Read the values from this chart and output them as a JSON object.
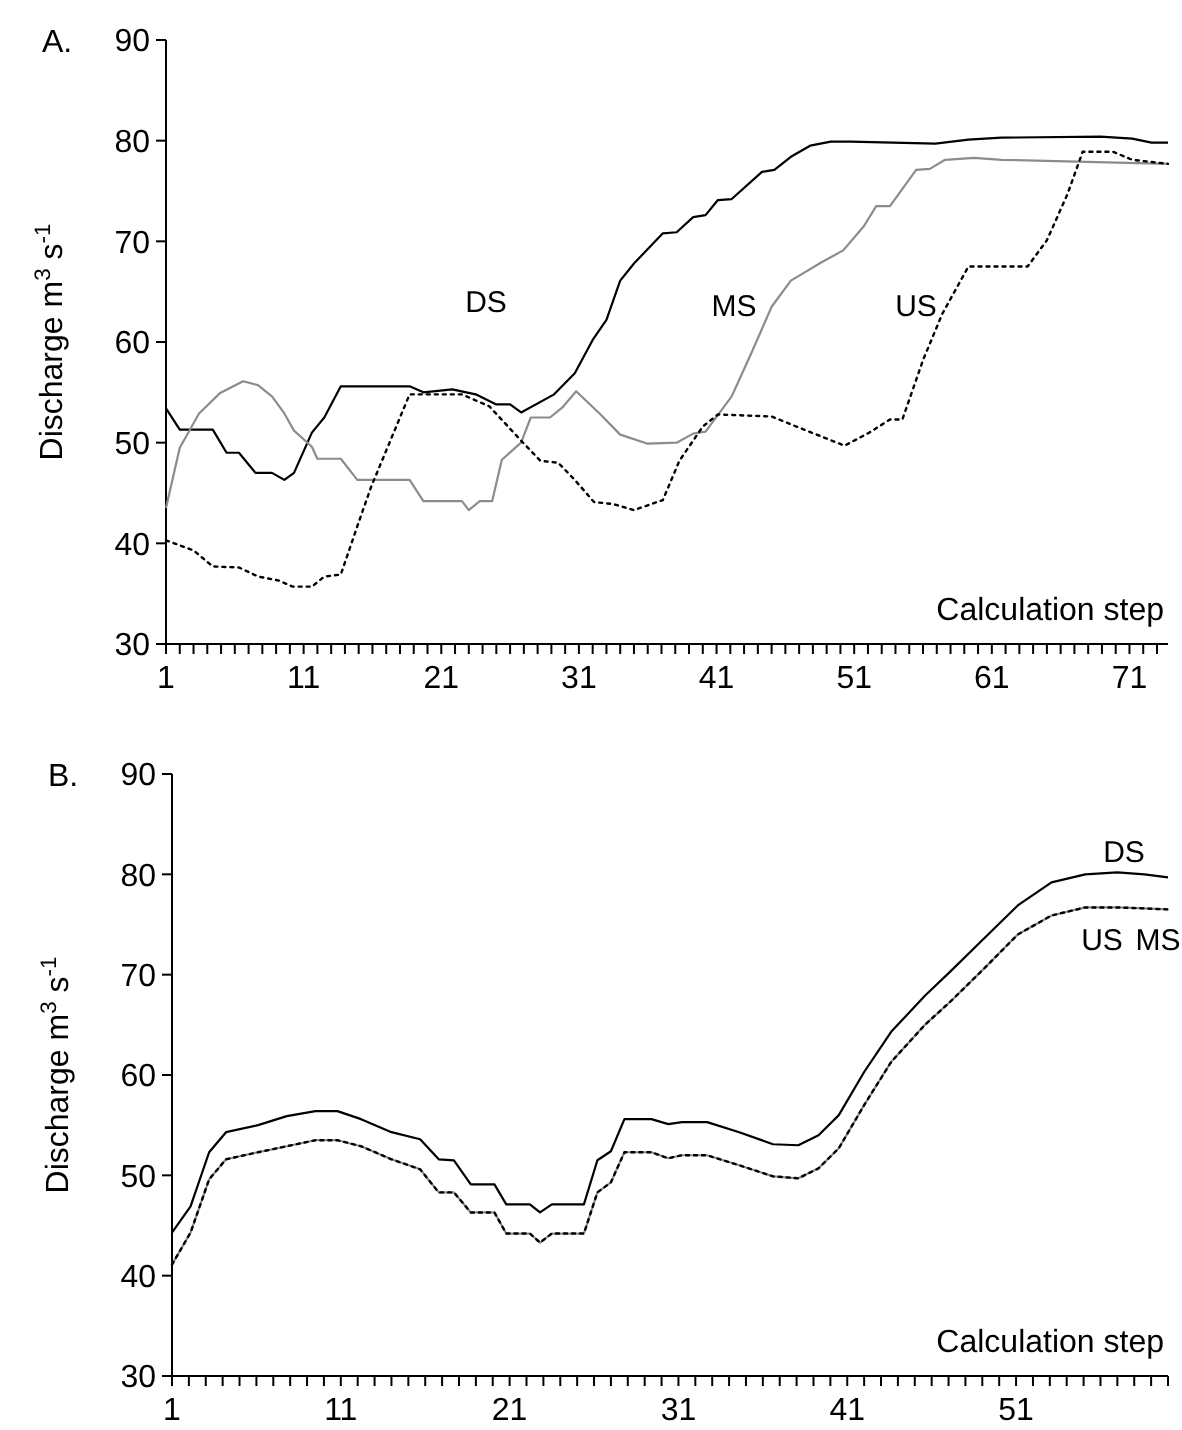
{
  "chart_data": [
    {
      "type": "line",
      "title": "A.",
      "xlabel": "Calculation step",
      "ylabel": "Discharge m$^{3}$ s$^{-1}$",
      "xlim": [
        1,
        73.8
      ],
      "ylim": [
        30,
        90
      ],
      "yticks": [
        30,
        40,
        50,
        60,
        70,
        80,
        90
      ],
      "xticks": [
        1,
        {
          "value": 2,
          "label": null
        },
        {
          "value": 3,
          "label": null
        },
        {
          "value": 4,
          "label": null
        },
        {
          "value": 5,
          "label": null
        },
        {
          "value": 6,
          "label": null
        },
        {
          "value": 7,
          "label": null
        },
        {
          "value": 8,
          "label": null
        },
        {
          "value": 9,
          "label": null
        },
        {
          "value": 10,
          "label": null
        },
        11,
        {
          "value": 12,
          "label": null
        },
        {
          "value": 13,
          "label": null
        },
        {
          "value": 14,
          "label": null
        },
        {
          "value": 15,
          "label": null
        },
        {
          "value": 16,
          "label": null
        },
        {
          "value": 17,
          "label": null
        },
        {
          "value": 18,
          "label": null
        },
        {
          "value": 19,
          "label": null
        },
        {
          "value": 20,
          "label": null
        },
        21,
        {
          "value": 22,
          "label": null
        },
        {
          "value": 23,
          "label": null
        },
        {
          "value": 24,
          "label": null
        },
        {
          "value": 25,
          "label": null
        },
        {
          "value": 26,
          "label": null
        },
        {
          "value": 27,
          "label": null
        },
        {
          "value": 28,
          "label": null
        },
        {
          "value": 29,
          "label": null
        },
        {
          "value": 30,
          "label": null
        },
        31,
        {
          "value": 32,
          "label": null
        },
        {
          "value": 33,
          "label": null
        },
        {
          "value": 34,
          "label": null
        },
        {
          "value": 35,
          "label": null
        },
        {
          "value": 36,
          "label": null
        },
        {
          "value": 37,
          "label": null
        },
        {
          "value": 38,
          "label": null
        },
        {
          "value": 39,
          "label": null
        },
        {
          "value": 40,
          "label": null
        },
        41,
        {
          "value": 42,
          "label": null
        },
        {
          "value": 43,
          "label": null
        },
        {
          "value": 44,
          "label": null
        },
        {
          "value": 45,
          "label": null
        },
        {
          "value": 46,
          "label": null
        },
        {
          "value": 47,
          "label": null
        },
        {
          "value": 48,
          "label": null
        },
        {
          "value": 49,
          "label": null
        },
        {
          "value": 50,
          "label": null
        },
        51,
        {
          "value": 52,
          "label": null
        },
        {
          "value": 53,
          "label": null
        },
        {
          "value": 54,
          "label": null
        },
        {
          "value": 55,
          "label": null
        },
        {
          "value": 56,
          "label": null
        },
        {
          "value": 57,
          "label": null
        },
        {
          "value": 58,
          "label": null
        },
        {
          "value": 59,
          "label": null
        },
        {
          "value": 60,
          "label": null
        },
        61,
        {
          "value": 62,
          "label": null
        },
        {
          "value": 63,
          "label": null
        },
        {
          "value": 64,
          "label": null
        },
        {
          "value": 65,
          "label": null
        },
        {
          "value": 66,
          "label": null
        },
        {
          "value": 67,
          "label": null
        },
        {
          "value": 68,
          "label": null
        },
        {
          "value": 69,
          "label": null
        },
        {
          "value": 70,
          "label": null
        },
        71,
        {
          "value": 72,
          "label": null
        },
        {
          "value": 73,
          "label": null
        }
      ],
      "series": [
        {
          "name": "DS",
          "color": "#000000",
          "line_style": "solid",
          "x": [
            1,
            2,
            4.4,
            5.4,
            6.3,
            7.5,
            8.7,
            9.6,
            10.3,
            11.6,
            12.5,
            13.7,
            18.7,
            19.7,
            21.8,
            23.5,
            25,
            26,
            26.8,
            29.2,
            30.7,
            32,
            33,
            34,
            35,
            37.1,
            38.1,
            39.3,
            40.2,
            41.1,
            42.1,
            44.3,
            45.2,
            46.4,
            47.8,
            49.3,
            50.7,
            56.9,
            59.3,
            61.7,
            68.9,
            71.2,
            72.6,
            73.8
          ],
          "values": [
            53.4,
            51.3,
            51.3,
            49,
            49,
            47,
            47,
            46.3,
            47,
            51,
            52.5,
            55.6,
            55.6,
            55,
            55.3,
            54.8,
            53.8,
            53.8,
            53,
            54.8,
            56.9,
            60.2,
            62.2,
            66.1,
            67.8,
            70.8,
            70.9,
            72.4,
            72.6,
            74.1,
            74.2,
            76.9,
            77.1,
            78.4,
            79.5,
            79.9,
            79.9,
            79.7,
            80.1,
            80.3,
            80.4,
            80.2,
            79.8,
            79.8
          ]
        },
        {
          "name": "MS",
          "color": "#8c8c8c",
          "line_style": "solid",
          "x": [
            1,
            2,
            3.4,
            4.9,
            6.6,
            7.7,
            8.7,
            9.6,
            10.3,
            11.6,
            12,
            13.7,
            14.9,
            18.7,
            19.7,
            22.5,
            23,
            23.8,
            24.7,
            25.4,
            26.8,
            27.5,
            28.9,
            29.8,
            30.8,
            32.5,
            34,
            36,
            38.1,
            39.3,
            40.2,
            42.1,
            43.5,
            45,
            46.4,
            48.6,
            50.2,
            51.7,
            52.6,
            53.6,
            55.5,
            56.5,
            57.6,
            59.7,
            61.7,
            73.8
          ],
          "values": [
            43.5,
            49.5,
            52.9,
            54.9,
            56.1,
            55.7,
            54.6,
            52.9,
            51.2,
            49.6,
            48.4,
            48.4,
            46.3,
            46.3,
            44.2,
            44.2,
            43.3,
            44.2,
            44.2,
            48.3,
            50,
            52.5,
            52.5,
            53.5,
            55.1,
            52.9,
            50.8,
            49.9,
            50,
            50.9,
            51.1,
            54.6,
            58.8,
            63.5,
            66.1,
            67.9,
            69.1,
            71.5,
            73.5,
            73.5,
            77.1,
            77.2,
            78.1,
            78.3,
            78.1,
            77.7
          ]
        },
        {
          "name": "US",
          "color": "#000000",
          "line_style": "dotted",
          "x": [
            1,
            3,
            4.4,
            6.3,
            7.7,
            9.2,
            10.2,
            11.6,
            12.5,
            13.7,
            14.9,
            15.9,
            17.3,
            18.7,
            22.5,
            24.5,
            26.8,
            28.2,
            29.5,
            30.7,
            32.1,
            33.5,
            35,
            37.1,
            38.3,
            40,
            41.1,
            45,
            46.8,
            50.3,
            52.1,
            53.6,
            54.5,
            56,
            57.4,
            59.3,
            63.6,
            65,
            66.5,
            67.6,
            69.8,
            71.2,
            73.8
          ],
          "values": [
            40.3,
            39.3,
            37.7,
            37.6,
            36.7,
            36.3,
            35.7,
            35.7,
            36.7,
            36.9,
            41.7,
            45.6,
            50.2,
            54.8,
            54.8,
            53.6,
            50.2,
            48.2,
            48,
            46.3,
            44.1,
            43.9,
            43.3,
            44.3,
            48.2,
            51.6,
            52.8,
            52.6,
            51.6,
            49.7,
            51,
            52.3,
            52.3,
            58.2,
            62.8,
            67.5,
            67.5,
            70.1,
            74.7,
            78.9,
            78.9,
            78.1,
            77.7
          ]
        }
      ]
    },
    {
      "type": "line",
      "title": "B.",
      "xlabel": "Calculation step",
      "ylabel": "Discharge m$^{3}$ s$^{-1}$",
      "xlim": [
        1,
        60
      ],
      "ylim": [
        30,
        90
      ],
      "yticks": [
        30,
        40,
        50,
        60,
        70,
        80,
        90
      ],
      "xticks": [
        1,
        {
          "value": 2,
          "label": null
        },
        {
          "value": 3,
          "label": null
        },
        {
          "value": 4,
          "label": null
        },
        {
          "value": 5,
          "label": null
        },
        {
          "value": 6,
          "label": null
        },
        {
          "value": 7,
          "label": null
        },
        {
          "value": 8,
          "label": null
        },
        {
          "value": 9,
          "label": null
        },
        {
          "value": 10,
          "label": null
        },
        11,
        {
          "value": 12,
          "label": null
        },
        {
          "value": 13,
          "label": null
        },
        {
          "value": 14,
          "label": null
        },
        {
          "value": 15,
          "label": null
        },
        {
          "value": 16,
          "label": null
        },
        {
          "value": 17,
          "label": null
        },
        {
          "value": 18,
          "label": null
        },
        {
          "value": 19,
          "label": null
        },
        {
          "value": 20,
          "label": null
        },
        21,
        {
          "value": 22,
          "label": null
        },
        {
          "value": 23,
          "label": null
        },
        {
          "value": 24,
          "label": null
        },
        {
          "value": 25,
          "label": null
        },
        {
          "value": 26,
          "label": null
        },
        {
          "value": 27,
          "label": null
        },
        {
          "value": 28,
          "label": null
        },
        {
          "value": 29,
          "label": null
        },
        {
          "value": 30,
          "label": null
        },
        31,
        {
          "value": 32,
          "label": null
        },
        {
          "value": 33,
          "label": null
        },
        {
          "value": 34,
          "label": null
        },
        {
          "value": 35,
          "label": null
        },
        {
          "value": 36,
          "label": null
        },
        {
          "value": 37,
          "label": null
        },
        {
          "value": 38,
          "label": null
        },
        {
          "value": 39,
          "label": null
        },
        {
          "value": 40,
          "label": null
        },
        41,
        {
          "value": 42,
          "label": null
        },
        {
          "value": 43,
          "label": null
        },
        {
          "value": 44,
          "label": null
        },
        {
          "value": 45,
          "label": null
        },
        {
          "value": 46,
          "label": null
        },
        {
          "value": 47,
          "label": null
        },
        {
          "value": 48,
          "label": null
        },
        {
          "value": 49,
          "label": null
        },
        {
          "value": 50,
          "label": null
        },
        51,
        {
          "value": 52,
          "label": null
        },
        {
          "value": 53,
          "label": null
        },
        {
          "value": 54,
          "label": null
        },
        {
          "value": 55,
          "label": null
        },
        {
          "value": 56,
          "label": null
        },
        {
          "value": 57,
          "label": null
        },
        {
          "value": 58,
          "label": null
        },
        {
          "value": 59,
          "label": null
        },
        {
          "value": 60,
          "label": null
        }
      ],
      "series": [
        {
          "name": "DS",
          "color": "#000000",
          "line_style": "solid",
          "x": [
            1,
            2.1,
            3.2,
            4.2,
            6.1,
            7.8,
            9.5,
            10.8,
            12.2,
            14,
            15.7,
            16.8,
            17.7,
            18.7,
            20.1,
            20.8,
            22.2,
            22.8,
            23.5,
            25.4,
            26.2,
            27,
            27.8,
            29.4,
            30.4,
            31.2,
            32.7,
            34.6,
            36.6,
            38.1,
            39.3,
            40.5,
            42,
            43.6,
            45.6,
            47.1,
            49.1,
            51.1,
            53.1,
            55.1,
            57,
            58.6,
            60
          ],
          "values": [
            44.3,
            46.9,
            52.3,
            54.3,
            55,
            55.9,
            56.4,
            56.4,
            55.6,
            54.3,
            53.6,
            51.6,
            51.5,
            49.1,
            49.1,
            47.1,
            47.1,
            46.3,
            47.1,
            47.1,
            51.5,
            52.4,
            55.6,
            55.6,
            55.1,
            55.3,
            55.3,
            54.3,
            53.1,
            53,
            54,
            56,
            60.3,
            64.3,
            67.9,
            70.3,
            73.6,
            76.9,
            79.2,
            80,
            80.2,
            80,
            79.7
          ]
        },
        {
          "name": "MS",
          "color": "#8c8c8c",
          "line_style": "solid",
          "x": [
            1,
            2.1,
            3.2,
            4.2,
            6.1,
            7.8,
            9.5,
            10.8,
            12.2,
            14,
            15.7,
            16.8,
            17.7,
            18.7,
            20.1,
            20.8,
            22.2,
            22.8,
            23.5,
            25.4,
            26.2,
            27,
            27.8,
            29.4,
            30.4,
            31.2,
            32.7,
            34.6,
            36.6,
            38.1,
            39.3,
            40.5,
            42,
            43.6,
            45.6,
            47.1,
            49.1,
            51.1,
            53.1,
            55.1,
            57,
            58.6,
            60
          ],
          "values": [
            41.1,
            44.3,
            49.6,
            51.6,
            52.3,
            52.9,
            53.5,
            53.5,
            52.9,
            51.6,
            50.6,
            48.3,
            48.3,
            46.3,
            46.3,
            44.2,
            44.2,
            43.3,
            44.2,
            44.2,
            48.3,
            49.3,
            52.3,
            52.3,
            51.7,
            52,
            52,
            51,
            49.9,
            49.7,
            50.7,
            52.7,
            57,
            61.3,
            65,
            67.3,
            70.6,
            74,
            75.9,
            76.7,
            76.7,
            76.6,
            76.5
          ]
        },
        {
          "name": "US",
          "color": "#000000",
          "line_style": "dotted",
          "x": [
            1,
            2.1,
            3.2,
            4.2,
            6.1,
            7.8,
            9.5,
            10.8,
            12.2,
            14,
            15.7,
            16.8,
            17.7,
            18.7,
            20.1,
            20.8,
            22.2,
            22.8,
            23.5,
            25.4,
            26.2,
            27,
            27.8,
            29.4,
            30.4,
            31.2,
            32.7,
            34.6,
            36.6,
            38.1,
            39.3,
            40.5,
            42,
            43.6,
            45.6,
            47.1,
            49.1,
            51.1,
            53.1,
            55.1,
            57,
            58.6,
            60
          ],
          "values": [
            41.1,
            44.3,
            49.6,
            51.6,
            52.3,
            52.9,
            53.5,
            53.5,
            52.9,
            51.6,
            50.6,
            48.3,
            48.3,
            46.3,
            46.3,
            44.2,
            44.2,
            43.3,
            44.2,
            44.2,
            48.3,
            49.3,
            52.3,
            52.3,
            51.7,
            52,
            52,
            51,
            49.9,
            49.7,
            50.7,
            52.7,
            57,
            61.3,
            65,
            67.3,
            70.6,
            74,
            75.9,
            76.7,
            76.7,
            76.6,
            76.5
          ]
        }
      ]
    }
  ]
}
